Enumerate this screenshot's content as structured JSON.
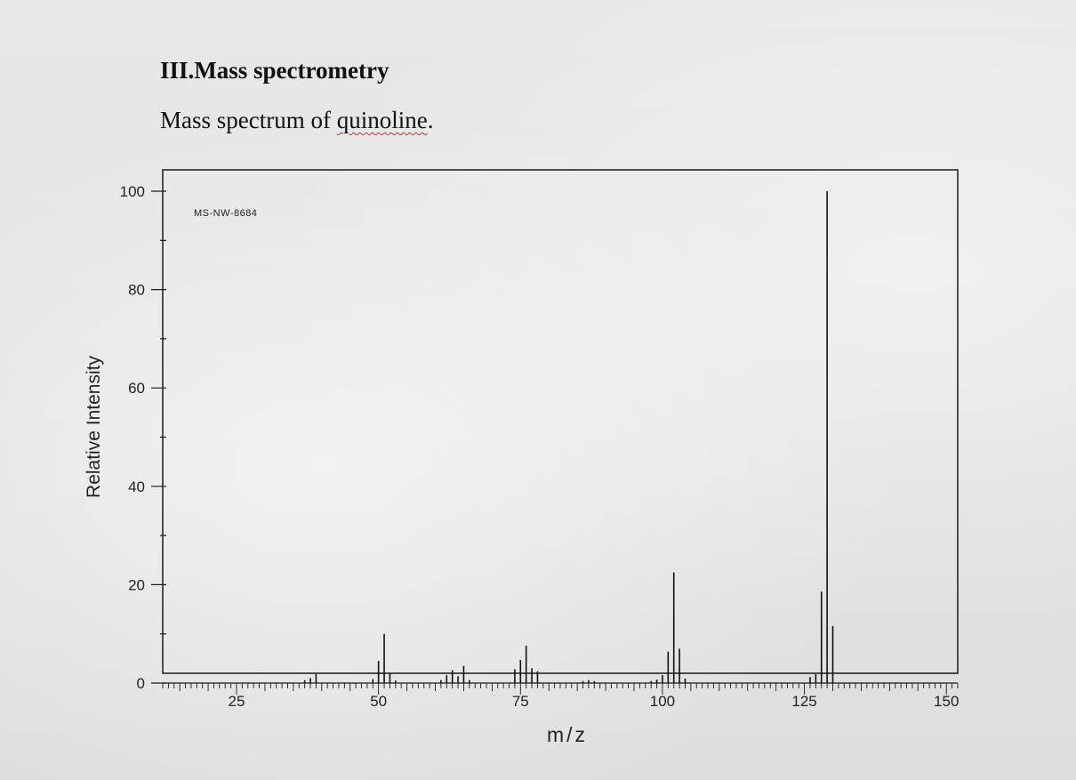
{
  "heading": {
    "number": "III.",
    "title": "Mass spectrometry"
  },
  "subheading": {
    "before": "Mass spectrum of ",
    "underlined": "quinoline",
    "after": "."
  },
  "chart_data": {
    "type": "bar",
    "subtype": "mass-spectrum-stick",
    "xlabel": "m/z",
    "ylabel": "Relative Intensity",
    "annotation": "MS-NW-8684",
    "xlim": [
      12,
      152
    ],
    "ylim": [
      0,
      100
    ],
    "x_ticks": [
      25,
      50,
      75,
      100,
      125,
      150
    ],
    "y_ticks": [
      0,
      20,
      40,
      60,
      80,
      100
    ],
    "grid": false,
    "legend": "none",
    "bar_color": "#111111",
    "peaks": [
      {
        "mz": 37,
        "intensity": 0.6
      },
      {
        "mz": 38,
        "intensity": 1.0
      },
      {
        "mz": 39,
        "intensity": 1.8
      },
      {
        "mz": 49,
        "intensity": 0.8
      },
      {
        "mz": 50,
        "intensity": 4.5
      },
      {
        "mz": 51,
        "intensity": 10.0
      },
      {
        "mz": 52,
        "intensity": 2.0
      },
      {
        "mz": 53,
        "intensity": 0.5
      },
      {
        "mz": 61,
        "intensity": 0.6
      },
      {
        "mz": 62,
        "intensity": 1.6
      },
      {
        "mz": 63,
        "intensity": 2.6
      },
      {
        "mz": 64,
        "intensity": 1.4
      },
      {
        "mz": 65,
        "intensity": 3.5
      },
      {
        "mz": 66,
        "intensity": 0.6
      },
      {
        "mz": 74,
        "intensity": 2.8
      },
      {
        "mz": 75,
        "intensity": 4.7
      },
      {
        "mz": 76,
        "intensity": 7.6
      },
      {
        "mz": 77,
        "intensity": 3.0
      },
      {
        "mz": 78,
        "intensity": 2.4
      },
      {
        "mz": 86,
        "intensity": 0.4
      },
      {
        "mz": 87,
        "intensity": 0.6
      },
      {
        "mz": 88,
        "intensity": 0.4
      },
      {
        "mz": 98,
        "intensity": 0.4
      },
      {
        "mz": 99,
        "intensity": 0.7
      },
      {
        "mz": 100,
        "intensity": 1.6
      },
      {
        "mz": 101,
        "intensity": 6.4
      },
      {
        "mz": 102,
        "intensity": 22.5
      },
      {
        "mz": 103,
        "intensity": 7.0
      },
      {
        "mz": 104,
        "intensity": 0.9
      },
      {
        "mz": 126,
        "intensity": 1.2
      },
      {
        "mz": 127,
        "intensity": 1.8
      },
      {
        "mz": 128,
        "intensity": 18.6
      },
      {
        "mz": 129,
        "intensity": 100.0
      },
      {
        "mz": 130,
        "intensity": 11.6
      }
    ]
  }
}
